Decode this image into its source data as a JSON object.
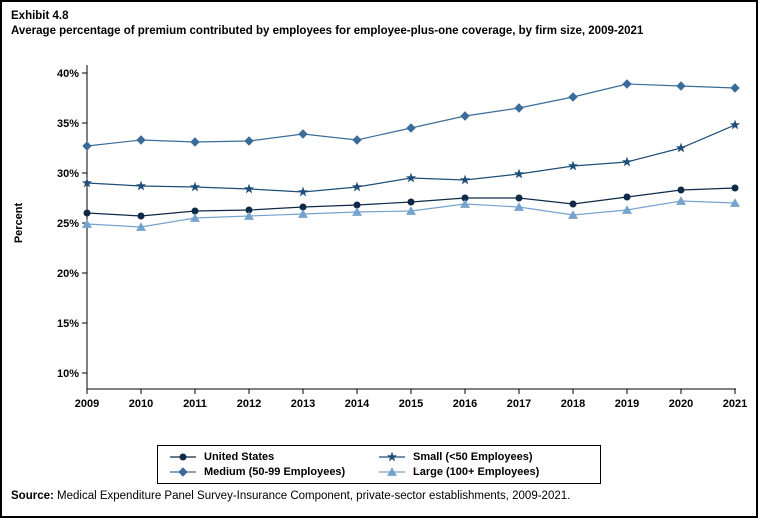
{
  "page": {
    "exhibit_number": "Exhibit 4.8",
    "title": "Average percentage of premium contributed by employees for employee-plus-one coverage, by firm size, 2009-2021",
    "source_label": "Source:",
    "source_text": " Medical Expenditure Panel Survey-Insurance Component, private-sector establishments, 2009-2021."
  },
  "chart_data": {
    "type": "line",
    "title": "Average percentage of premium contributed by employees for employee-plus-one coverage, by firm size, 2009-2021",
    "xlabel": "",
    "ylabel": "Percent",
    "ylim": [
      10,
      40
    ],
    "yticks": [
      10,
      15,
      20,
      25,
      30,
      35,
      40
    ],
    "ytick_suffix": "%",
    "grid": false,
    "legend_position": "bottom",
    "x": [
      2009,
      2010,
      2011,
      2012,
      2013,
      2014,
      2015,
      2016,
      2017,
      2018,
      2019,
      2020,
      2021
    ],
    "series": [
      {
        "name": "United States",
        "marker": "circle",
        "color": "#0e2a47",
        "values": [
          26.0,
          25.7,
          26.2,
          26.3,
          26.6,
          26.8,
          27.1,
          27.5,
          27.5,
          26.9,
          27.6,
          28.3,
          28.5
        ]
      },
      {
        "name": "Small (<50 Employees)",
        "marker": "star",
        "color": "#1f4e79",
        "values": [
          29.0,
          28.7,
          28.6,
          28.4,
          28.1,
          28.6,
          29.5,
          29.3,
          29.9,
          30.7,
          31.1,
          32.5,
          34.8
        ]
      },
      {
        "name": "Medium (50-99 Employees)",
        "marker": "diamond",
        "color": "#3a6c99",
        "values": [
          32.7,
          33.3,
          33.1,
          33.2,
          33.9,
          33.3,
          34.5,
          35.7,
          36.5,
          37.6,
          38.9,
          38.7,
          38.5
        ]
      },
      {
        "name": "Large (100+ Employees)",
        "marker": "triangle",
        "color": "#76a3cd",
        "values": [
          24.9,
          24.6,
          25.5,
          25.7,
          25.9,
          26.1,
          26.2,
          26.9,
          26.6,
          25.8,
          26.3,
          27.2,
          27.0
        ]
      }
    ]
  }
}
